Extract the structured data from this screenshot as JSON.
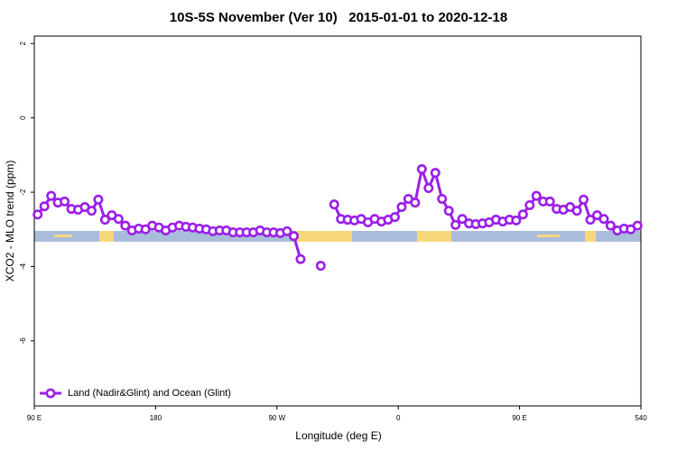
{
  "chart_data": {
    "type": "line",
    "title": "10S-5S November (Ver 10)   2015-01-01 to 2020-12-18",
    "xlabel": "Longitude (deg E)",
    "ylabel": "XCO2 - MLO trend (ppm)",
    "xlim": [
      90,
      540
    ],
    "ylim": [
      -7.75,
      2.2
    ],
    "xticks": [
      {
        "value": 90,
        "label": "90 E"
      },
      180,
      {
        "value": 270,
        "label": "90 W"
      },
      {
        "value": 360,
        "label": "0"
      },
      {
        "value": 450,
        "label": "90 E"
      },
      540
    ],
    "yticks": [
      -6,
      -4,
      -2,
      0,
      2
    ],
    "legend": "bottom-left",
    "x": [
      92.5,
      97.5,
      102.5,
      107.5,
      112.5,
      117.5,
      122.5,
      127.5,
      132.5,
      137.5,
      142.5,
      147.5,
      152.5,
      157.5,
      162.5,
      167.5,
      172.5,
      177.5,
      182.5,
      187.5,
      192.5,
      197.5,
      202.5,
      207.5,
      212.5,
      217.5,
      222.5,
      227.5,
      232.5,
      237.5,
      242.5,
      247.5,
      252.5,
      257.5,
      262.5,
      267.5,
      272.5,
      277.5,
      282.5,
      287.5,
      292.5,
      297.5,
      302.5,
      307.5,
      312.5,
      317.5,
      322.5,
      327.5,
      332.5,
      337.5,
      342.5,
      347.5,
      352.5,
      357.5,
      362.5,
      367.5,
      372.5,
      377.5,
      382.5,
      387.5,
      392.5,
      397.5,
      402.5,
      407.5,
      412.5,
      417.5,
      422.5,
      427.5,
      432.5,
      437.5,
      442.5,
      447.5,
      452.5,
      457.5,
      462.5,
      467.5,
      472.5,
      477.5,
      482.5,
      487.5,
      492.5,
      497.5,
      502.5,
      507.5,
      512.5,
      517.5,
      522.5,
      527.5,
      532.5,
      537.5
    ],
    "series": [
      {
        "name": "Land (Nadir&Glint) and Ocean (Glint)",
        "color": "#9b1fe8",
        "values": [
          -2.6,
          -2.38,
          -2.1,
          -2.28,
          -2.25,
          -2.45,
          -2.47,
          -2.4,
          -2.5,
          -2.2,
          -2.74,
          -2.62,
          -2.72,
          -2.9,
          -3.03,
          -2.98,
          -3.0,
          -2.9,
          -2.95,
          -3.03,
          -2.95,
          -2.9,
          -2.93,
          -2.95,
          -2.98,
          -3.0,
          -3.05,
          -3.03,
          -3.03,
          -3.08,
          -3.08,
          -3.08,
          -3.08,
          -3.03,
          -3.08,
          -3.08,
          -3.1,
          -3.05,
          -3.18,
          -3.8,
          null,
          null,
          -3.98,
          null,
          -2.33,
          -2.72,
          -2.74,
          -2.76,
          -2.72,
          -2.81,
          -2.72,
          -2.79,
          -2.74,
          -2.67,
          -2.4,
          -2.18,
          -2.28,
          -1.38,
          -1.89,
          -1.48,
          -2.18,
          -2.5,
          -2.88,
          -2.72,
          -2.84,
          -2.86,
          -2.84,
          -2.81,
          -2.74,
          -2.79,
          -2.74,
          -2.76,
          -2.6,
          -2.35,
          -2.1,
          -2.25,
          -2.25,
          -2.45,
          -2.47,
          -2.4,
          -2.5,
          -2.2,
          -2.74,
          -2.62,
          -2.72,
          -2.9,
          -3.03,
          -2.98,
          -3.0,
          -2.9
        ]
      }
    ]
  }
}
